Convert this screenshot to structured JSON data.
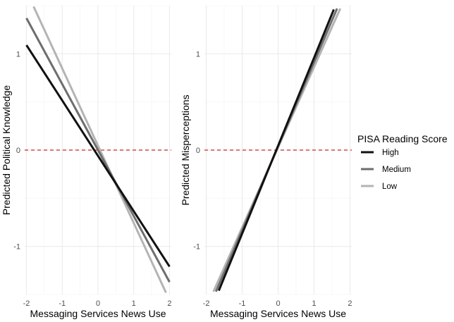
{
  "legend": {
    "title": "PISA Reading Score",
    "entries": [
      {
        "name": "High",
        "color": "#111111"
      },
      {
        "name": "Medium",
        "color": "#6e6e6e"
      },
      {
        "name": "Low",
        "color": "#b4b4b4"
      }
    ]
  },
  "chart_data": [
    {
      "type": "line",
      "xlabel": "Messaging Services News Use",
      "ylabel": "Predicted Political Knowledge",
      "xlim": [
        -2.05,
        2.05
      ],
      "ylim": [
        -1.5,
        1.5
      ],
      "xticks": [
        -2,
        -1,
        0,
        1,
        2
      ],
      "yticks": [
        -1,
        0,
        1
      ],
      "hline": 0,
      "series": [
        {
          "name": "High",
          "x": [
            -2.0,
            2.0
          ],
          "y": [
            1.09,
            -1.21
          ]
        },
        {
          "name": "Medium",
          "x": [
            -2.0,
            2.0
          ],
          "y": [
            1.37,
            -1.37
          ]
        },
        {
          "name": "Low",
          "x": [
            -1.8,
            1.9
          ],
          "y": [
            1.49,
            -1.48
          ]
        }
      ]
    },
    {
      "type": "line",
      "xlabel": "Messaging Services News Use",
      "ylabel": "Predicted Misperceptions",
      "xlim": [
        -2.05,
        2.05
      ],
      "ylim": [
        -1.5,
        1.5
      ],
      "xticks": [
        -2,
        -1,
        0,
        1,
        2
      ],
      "yticks": [
        -1,
        0,
        1
      ],
      "hline": 0,
      "series": [
        {
          "name": "High",
          "x": [
            -1.65,
            1.55
          ],
          "y": [
            -1.46,
            1.46
          ]
        },
        {
          "name": "Medium",
          "x": [
            -1.73,
            1.64
          ],
          "y": [
            -1.47,
            1.47
          ]
        },
        {
          "name": "Low",
          "x": [
            -1.8,
            1.73
          ],
          "y": [
            -1.47,
            1.47
          ]
        }
      ]
    }
  ]
}
